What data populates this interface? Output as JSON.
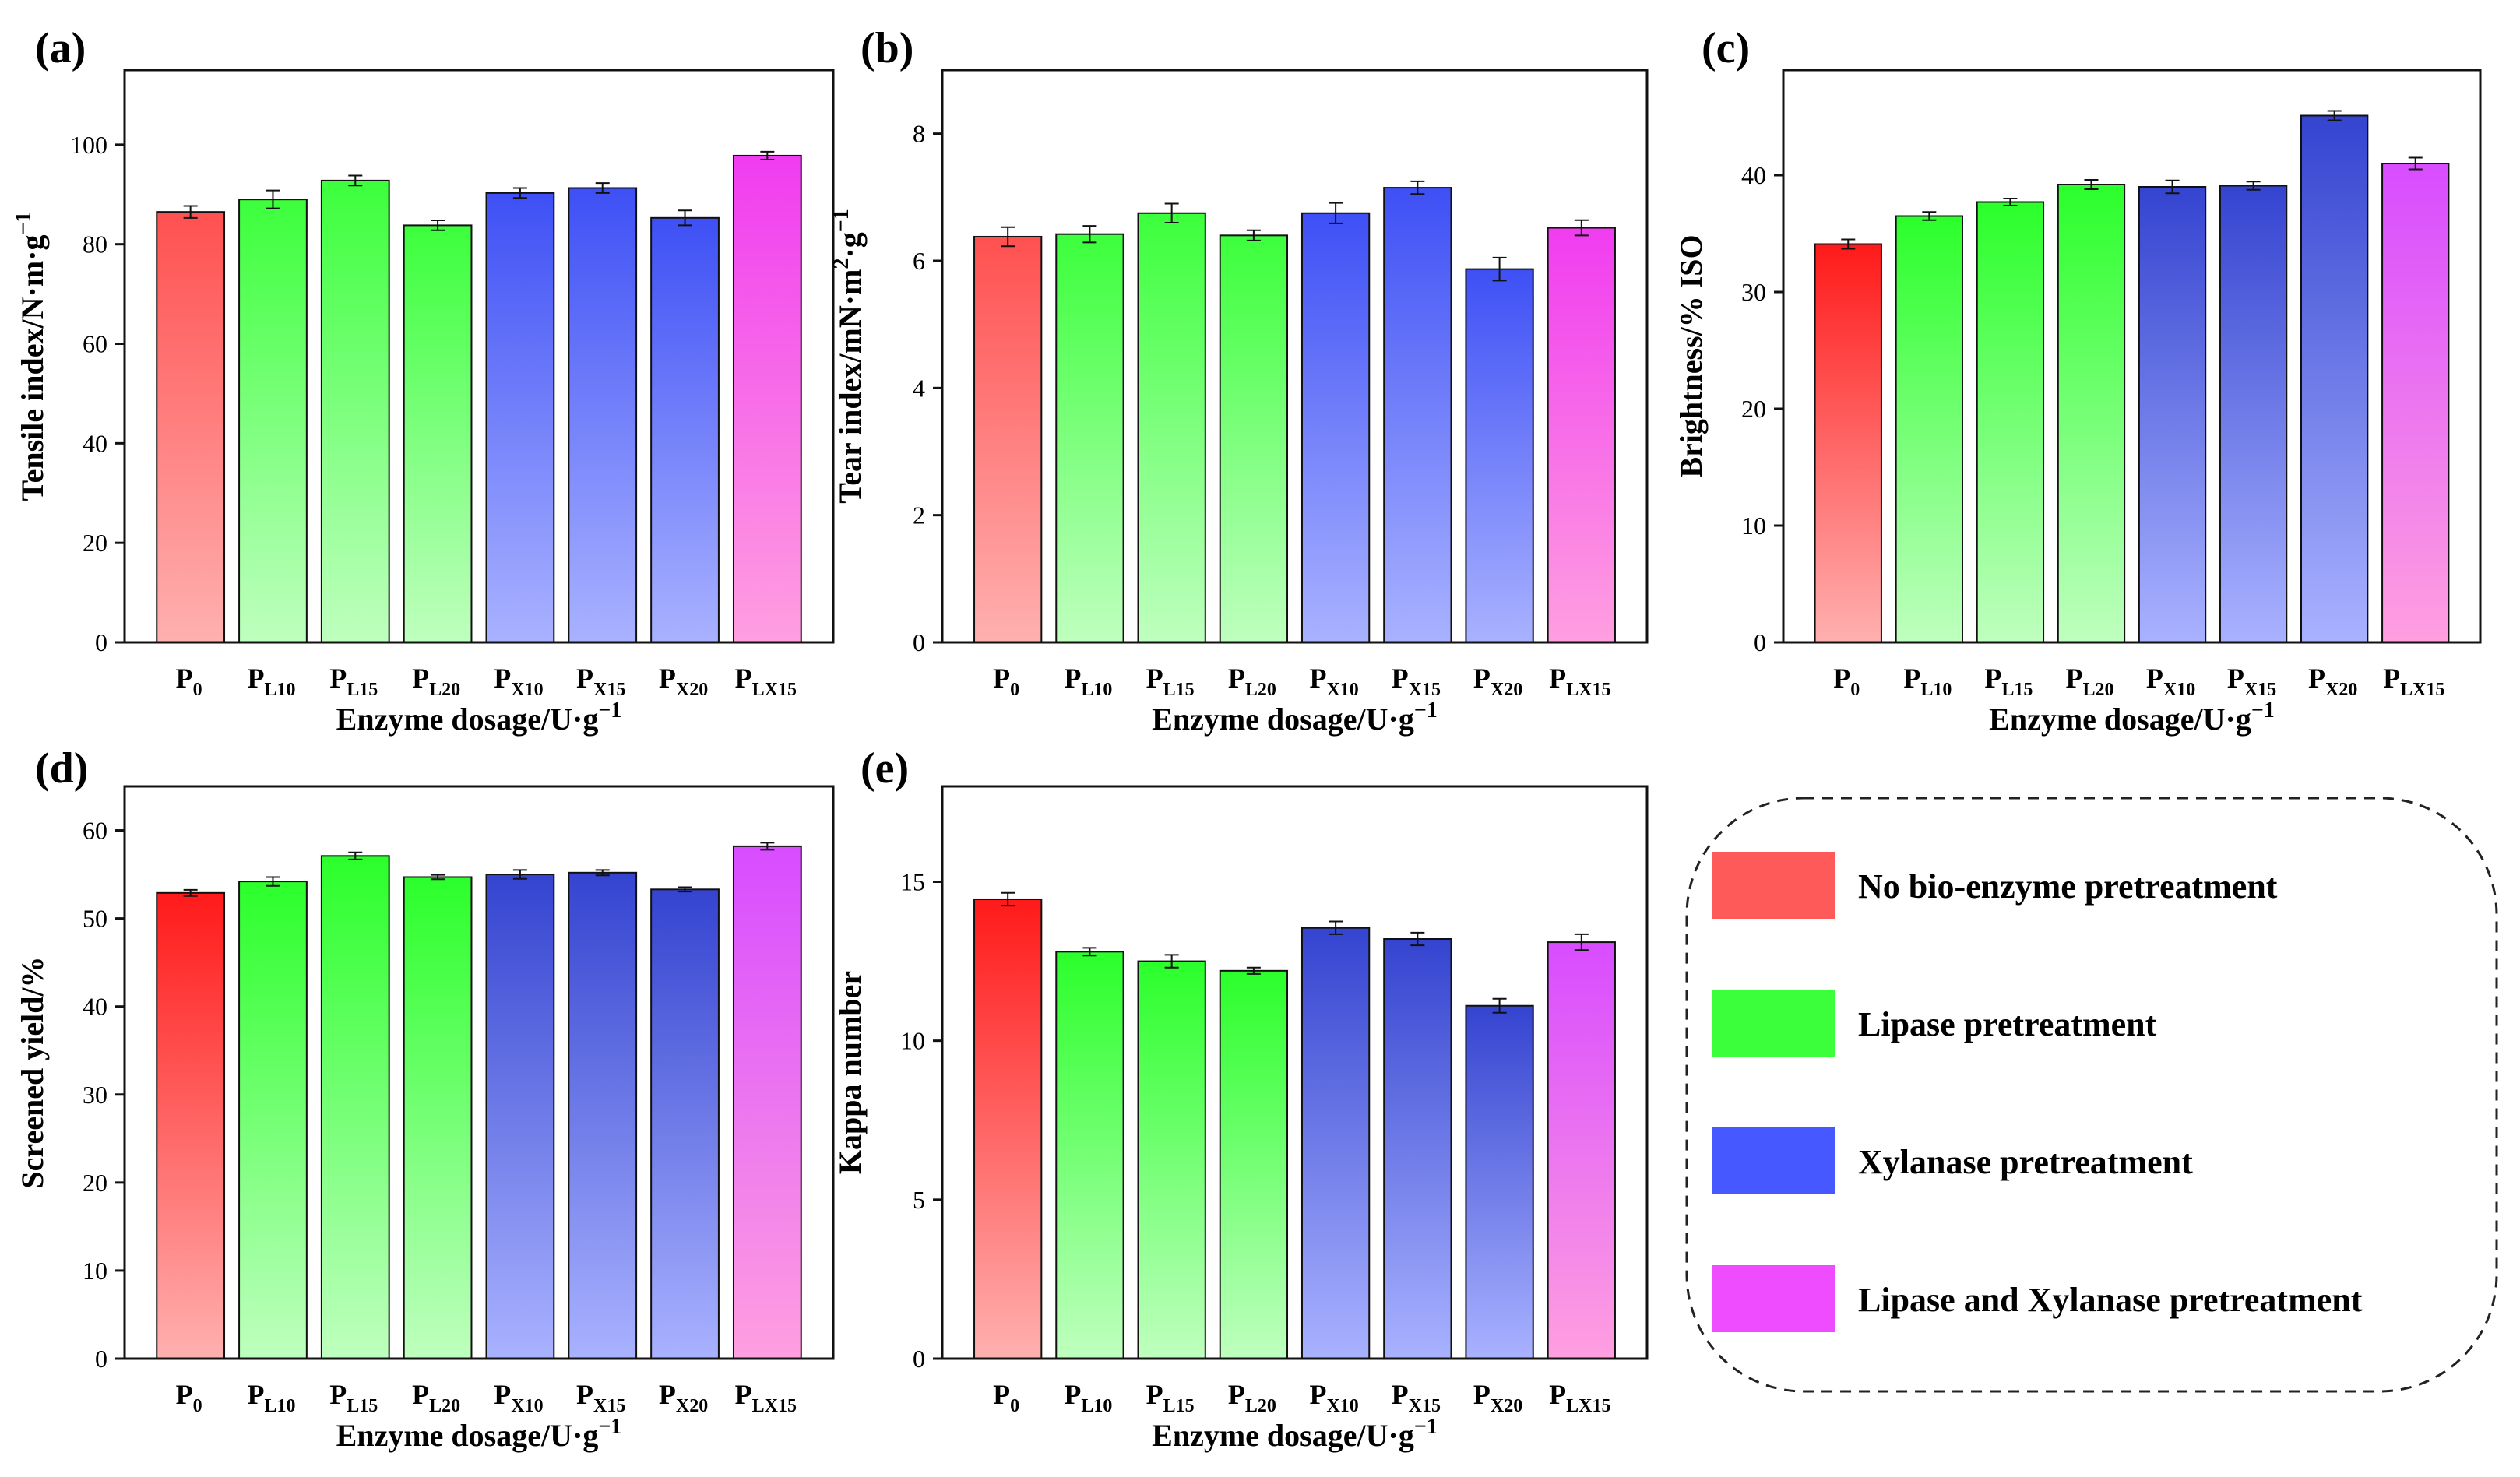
{
  "colors": {
    "red": "#ff2323",
    "green": "#3cff3c",
    "blue": "#3a48d8",
    "magenta": "#ee3cf2"
  },
  "legend": [
    {
      "label": "No bio-enzyme pretreatment",
      "color": "#ff5a5a"
    },
    {
      "label": "Lipase pretreatment",
      "color": "#3cff3c"
    },
    {
      "label": "Xylanase pretreatment",
      "color": "#4658ff"
    },
    {
      "label": "Lipase and Xylanase pretreatment",
      "color": "#f04cff"
    }
  ],
  "chart_data": [
    {
      "panel": "(a)",
      "type": "bar",
      "categories": [
        {
          "main": "P",
          "sub": "0"
        },
        {
          "main": "P",
          "sub": "L10"
        },
        {
          "main": "P",
          "sub": "L15"
        },
        {
          "main": "P",
          "sub": "L20"
        },
        {
          "main": "P",
          "sub": "X10"
        },
        {
          "main": "P",
          "sub": "X15"
        },
        {
          "main": "P",
          "sub": "X20"
        },
        {
          "main": "P",
          "sub": "LX15"
        }
      ],
      "values": [
        86.5,
        89.0,
        92.8,
        83.8,
        90.3,
        91.3,
        85.3,
        97.8
      ],
      "errors": [
        1.2,
        1.8,
        1.0,
        1.0,
        1.0,
        1.0,
        1.5,
        0.8
      ],
      "groups": [
        "red",
        "green",
        "green",
        "green",
        "blue",
        "blue",
        "blue",
        "magenta"
      ],
      "xlabel": "Enzyme dosage/U·g",
      "xlabel_sup": "−1",
      "ylabel": "Tensile index/N·m·g",
      "ylabel_sup": "−1",
      "ylim": [
        0,
        115
      ],
      "yticks": [
        "0",
        "20",
        "40",
        "60",
        "80",
        "100"
      ],
      "gradient_top_strong": false
    },
    {
      "panel": "(b)",
      "type": "bar",
      "categories": [
        {
          "main": "P",
          "sub": "0"
        },
        {
          "main": "P",
          "sub": "L10"
        },
        {
          "main": "P",
          "sub": "L15"
        },
        {
          "main": "P",
          "sub": "L20"
        },
        {
          "main": "P",
          "sub": "X10"
        },
        {
          "main": "P",
          "sub": "X15"
        },
        {
          "main": "P",
          "sub": "X20"
        },
        {
          "main": "P",
          "sub": "LX15"
        }
      ],
      "values": [
        6.38,
        6.42,
        6.75,
        6.4,
        6.75,
        7.15,
        5.87,
        6.52
      ],
      "errors": [
        0.15,
        0.13,
        0.15,
        0.08,
        0.16,
        0.1,
        0.18,
        0.12
      ],
      "groups": [
        "red",
        "green",
        "green",
        "green",
        "blue",
        "blue",
        "blue",
        "magenta"
      ],
      "xlabel": "Enzyme dosage/U·g",
      "xlabel_sup": "−1",
      "ylabel": "Tear index/mN·m",
      "ylabel_sup": "2",
      "ylabel_tail": "·g",
      "ylabel_tail_sup": "−1",
      "ylim": [
        0,
        9
      ],
      "yticks": [
        "0",
        "2",
        "4",
        "6",
        "8"
      ],
      "gradient_top_strong": false
    },
    {
      "panel": "(c)",
      "type": "bar",
      "categories": [
        {
          "main": "P",
          "sub": "0"
        },
        {
          "main": "P",
          "sub": "L10"
        },
        {
          "main": "P",
          "sub": "L15"
        },
        {
          "main": "P",
          "sub": "L20"
        },
        {
          "main": "P",
          "sub": "X10"
        },
        {
          "main": "P",
          "sub": "X15"
        },
        {
          "main": "P",
          "sub": "X20"
        },
        {
          "main": "P",
          "sub": "LX15"
        }
      ],
      "values": [
        34.1,
        36.5,
        37.7,
        39.2,
        39.0,
        39.1,
        45.1,
        41.0
      ],
      "errors": [
        0.4,
        0.35,
        0.3,
        0.4,
        0.55,
        0.35,
        0.4,
        0.5
      ],
      "groups": [
        "red",
        "green",
        "green",
        "green",
        "blue",
        "blue",
        "blue",
        "magenta"
      ],
      "xlabel": "Enzyme dosage/U·g",
      "xlabel_sup": "−1",
      "ylabel": "Brightness/% ISO",
      "ylim": [
        0,
        49
      ],
      "yticks": [
        "0",
        "10",
        "20",
        "30",
        "40"
      ],
      "gradient_top_strong": true
    },
    {
      "panel": "(d)",
      "type": "bar",
      "categories": [
        {
          "main": "P",
          "sub": "0"
        },
        {
          "main": "P",
          "sub": "L10"
        },
        {
          "main": "P",
          "sub": "L15"
        },
        {
          "main": "P",
          "sub": "L20"
        },
        {
          "main": "P",
          "sub": "X10"
        },
        {
          "main": "P",
          "sub": "X15"
        },
        {
          "main": "P",
          "sub": "X20"
        },
        {
          "main": "P",
          "sub": "LX15"
        }
      ],
      "values": [
        52.9,
        54.2,
        57.1,
        54.7,
        55.0,
        55.2,
        53.3,
        58.2
      ],
      "errors": [
        0.35,
        0.5,
        0.4,
        0.25,
        0.5,
        0.3,
        0.25,
        0.4
      ],
      "groups": [
        "red",
        "green",
        "green",
        "green",
        "blue",
        "blue",
        "blue",
        "magenta"
      ],
      "xlabel": "Enzyme dosage/U·g",
      "xlabel_sup": "−1",
      "ylabel": "Screened yield/%",
      "ylim": [
        0,
        65
      ],
      "yticks": [
        "0",
        "10",
        "20",
        "30",
        "40",
        "50",
        "60"
      ],
      "gradient_top_strong": true
    },
    {
      "panel": "(e)",
      "type": "bar",
      "categories": [
        {
          "main": "P",
          "sub": "0"
        },
        {
          "main": "P",
          "sub": "L10"
        },
        {
          "main": "P",
          "sub": "L15"
        },
        {
          "main": "P",
          "sub": "L20"
        },
        {
          "main": "P",
          "sub": "X10"
        },
        {
          "main": "P",
          "sub": "X15"
        },
        {
          "main": "P",
          "sub": "X20"
        },
        {
          "main": "P",
          "sub": "LX15"
        }
      ],
      "values": [
        14.45,
        12.8,
        12.5,
        12.2,
        13.55,
        13.2,
        11.1,
        13.1
      ],
      "errors": [
        0.2,
        0.12,
        0.2,
        0.1,
        0.2,
        0.2,
        0.22,
        0.25
      ],
      "groups": [
        "red",
        "green",
        "green",
        "green",
        "blue",
        "blue",
        "blue",
        "magenta"
      ],
      "xlabel": "Enzyme dosage/U·g",
      "xlabel_sup": "−1",
      "ylabel": "Kappa number",
      "ylim": [
        0,
        18
      ],
      "yticks": [
        "0",
        "5",
        "10",
        "15"
      ],
      "gradient_top_strong": true
    }
  ]
}
